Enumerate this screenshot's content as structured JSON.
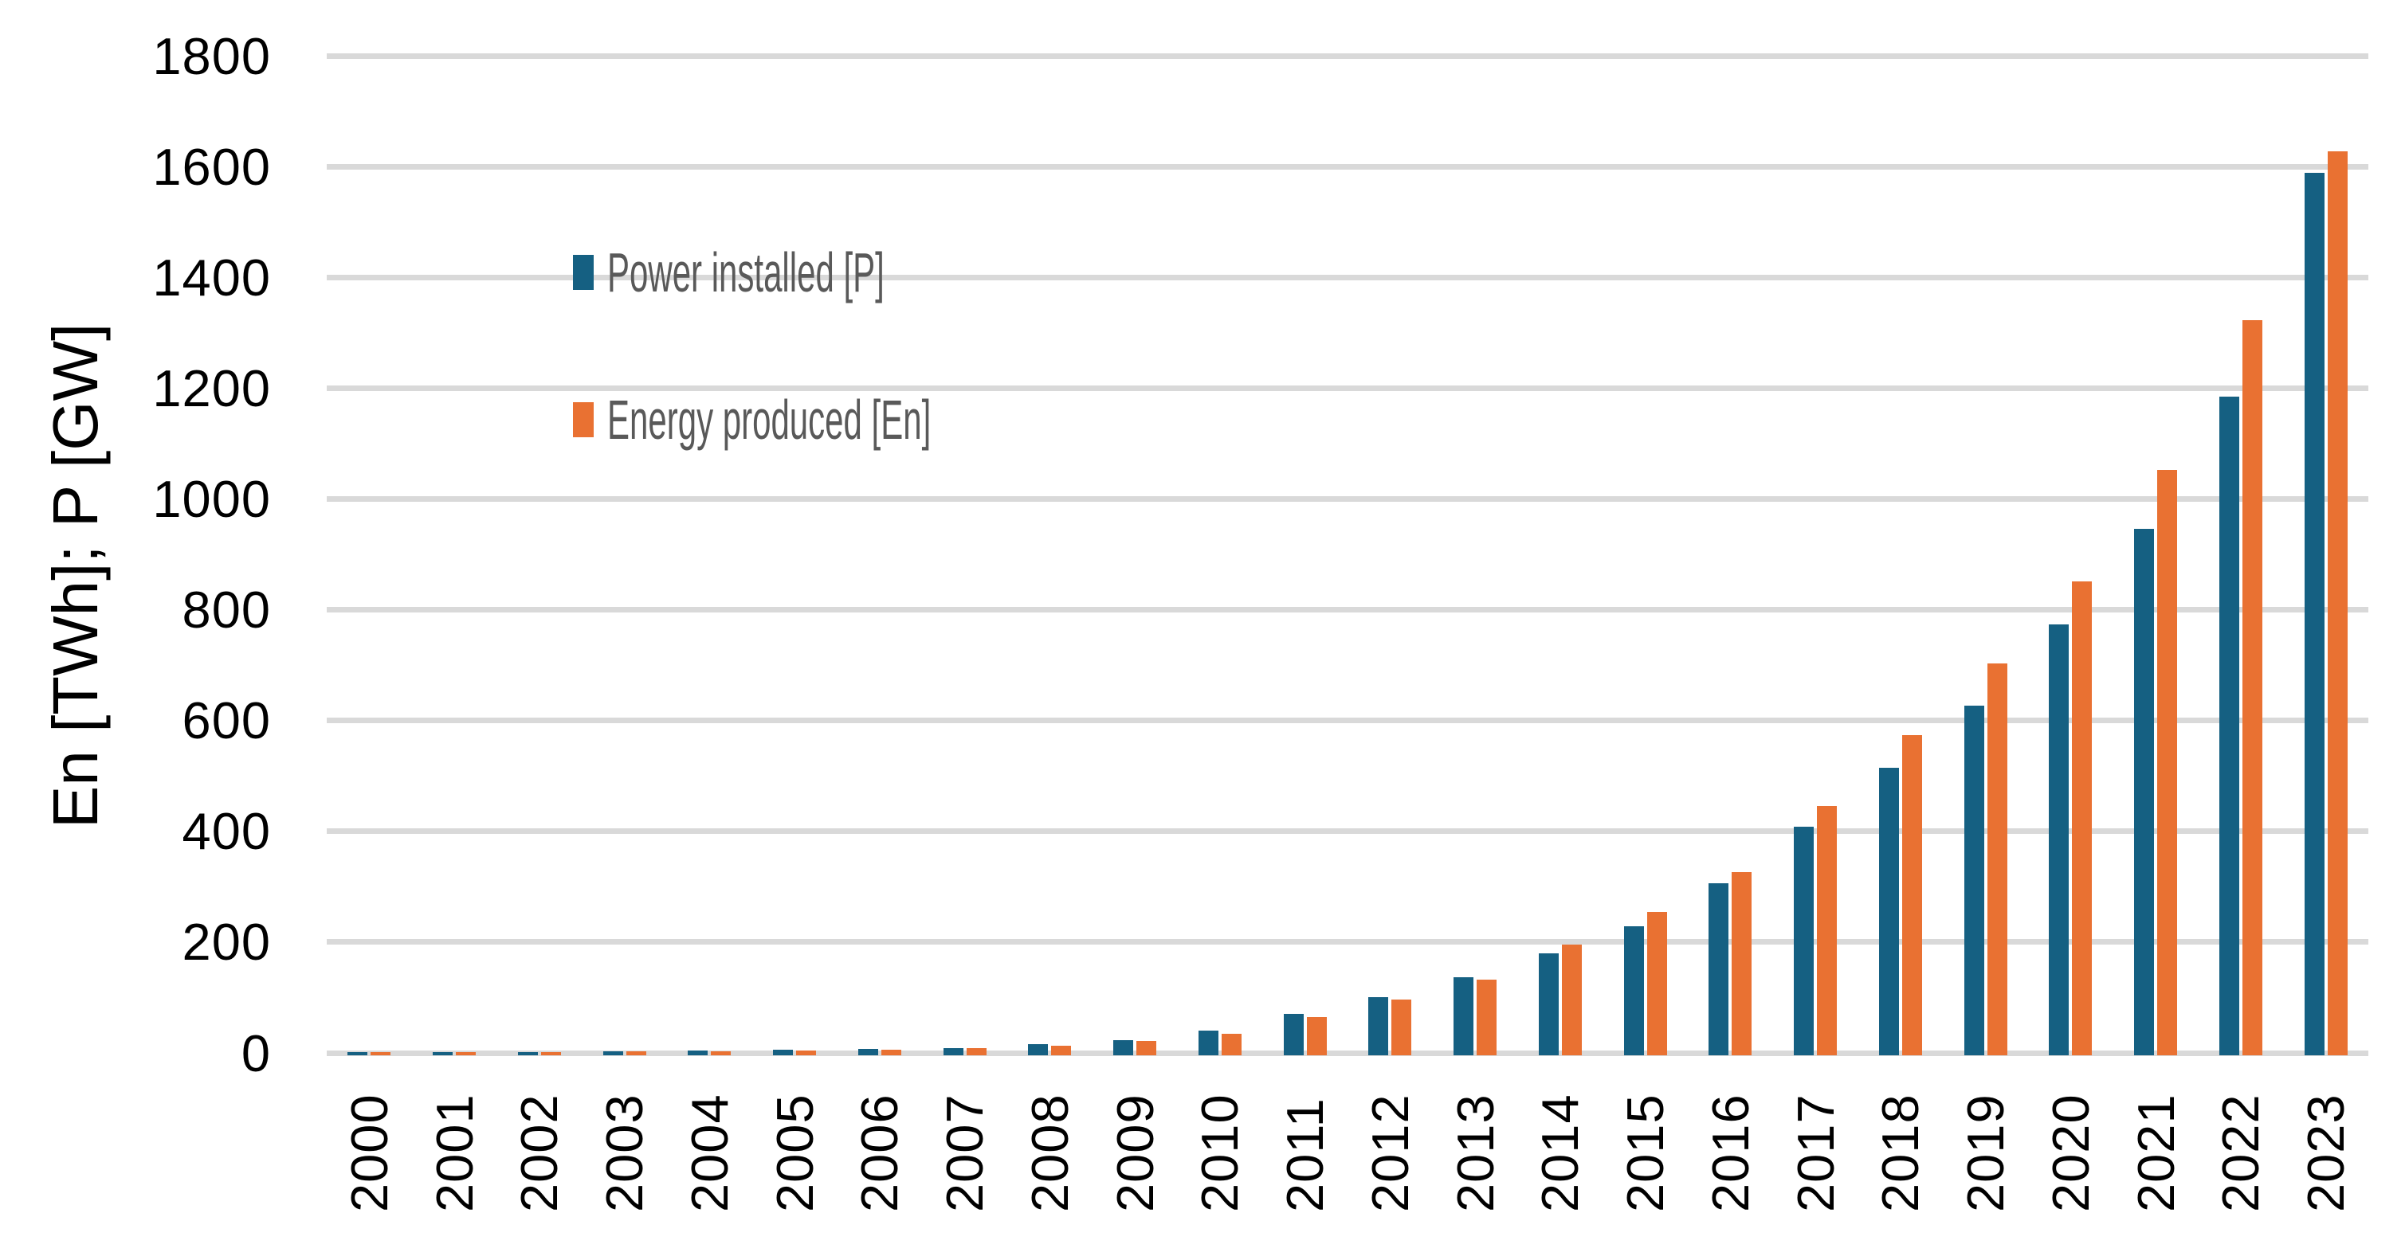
{
  "chart_data": {
    "type": "bar",
    "title": "",
    "xlabel": "",
    "ylabel": "En [TWh]; P [GW]",
    "categories": [
      "2000",
      "2001",
      "2002",
      "2003",
      "2004",
      "2005",
      "2006",
      "2007",
      "2008",
      "2009",
      "2010",
      "2011",
      "2012",
      "2013",
      "2014",
      "2015",
      "2016",
      "2017",
      "2018",
      "2019",
      "2020",
      "2021",
      "2022",
      "2023"
    ],
    "series": [
      {
        "name": "Power installed [P]",
        "unit": "GW",
        "color": "#156082",
        "values": [
          1.3,
          1.6,
          2.1,
          2.7,
          3.9,
          5.1,
          6.8,
          9.3,
          16,
          23,
          40,
          71,
          100,
          137,
          179,
          229,
          306,
          409,
          515,
          627,
          773,
          946,
          1185,
          1589
        ]
      },
      {
        "name": "Energy produced [En]",
        "unit": "TWh",
        "color": "#E97132",
        "values": [
          1.1,
          1.4,
          1.8,
          2.4,
          3.4,
          4.6,
          6.2,
          8.4,
          13,
          21,
          34,
          64,
          97,
          132,
          196,
          254,
          327,
          445,
          573,
          703,
          851,
          1053,
          1322,
          1628
        ]
      }
    ],
    "ylim": [
      0,
      1800
    ],
    "ytick_step": 200,
    "yticks": [
      0,
      200,
      400,
      600,
      800,
      1000,
      1200,
      1400,
      1600,
      1800
    ],
    "grid": true,
    "legend_position": "top-left-inside"
  },
  "colors": {
    "background": "#FFFFFF",
    "gridline": "#D9D9D9",
    "axis_text": "#000000",
    "legend_text": "#595959",
    "power_installed": "#156082",
    "energy_produced": "#E97132"
  }
}
